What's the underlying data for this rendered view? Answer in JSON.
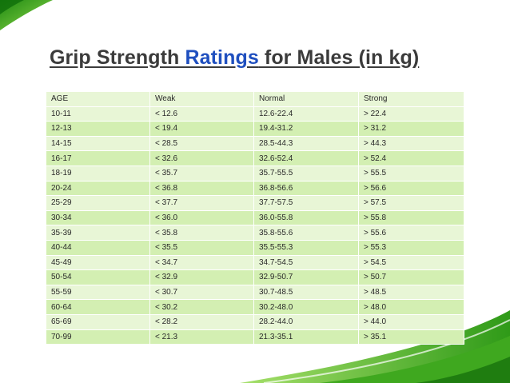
{
  "title": {
    "part1": "Grip Strength ",
    "highlight": "Ratings",
    "part2": " for Males (in kg)"
  },
  "table": {
    "headers": [
      "AGE",
      "Weak",
      "Normal",
      "Strong"
    ],
    "rows": [
      [
        "10-11",
        "< 12.6",
        "12.6-22.4",
        "> 22.4"
      ],
      [
        "12-13",
        "< 19.4",
        "19.4-31.2",
        "> 31.2"
      ],
      [
        "14-15",
        "< 28.5",
        "28.5-44.3",
        "> 44.3"
      ],
      [
        "16-17",
        "< 32.6",
        "32.6-52.4",
        "> 52.4"
      ],
      [
        "18-19",
        "< 35.7",
        "35.7-55.5",
        "> 55.5"
      ],
      [
        "20-24",
        "< 36.8",
        "36.8-56.6",
        "> 56.6"
      ],
      [
        "25-29",
        "< 37.7",
        "37.7-57.5",
        "> 57.5"
      ],
      [
        "30-34",
        "< 36.0",
        "36.0-55.8",
        "> 55.8"
      ],
      [
        "35-39",
        "< 35.8",
        "35.8-55.6",
        "> 55.6"
      ],
      [
        "40-44",
        "< 35.5",
        "35.5-55.3",
        "> 55.3"
      ],
      [
        "45-49",
        "< 34.7",
        "34.7-54.5",
        "> 54.5"
      ],
      [
        "50-54",
        "< 32.9",
        "32.9-50.7",
        "> 50.7"
      ],
      [
        "55-59",
        "< 30.7",
        "30.7-48.5",
        "> 48.5"
      ],
      [
        "60-64",
        "< 30.2",
        "30.2-48.0",
        "> 48.0"
      ],
      [
        "65-69",
        "< 28.2",
        "28.2-44.0",
        "> 44.0"
      ],
      [
        "70-99",
        "< 21.3",
        "21.3-35.1",
        "> 35.1"
      ]
    ]
  },
  "colors": {
    "title_text": "#3b3b3b",
    "title_highlight": "#1f4fbf",
    "row_dark": "#d3efb2",
    "row_light": "#e8f6d6",
    "accent_green": "#6cc12a"
  }
}
